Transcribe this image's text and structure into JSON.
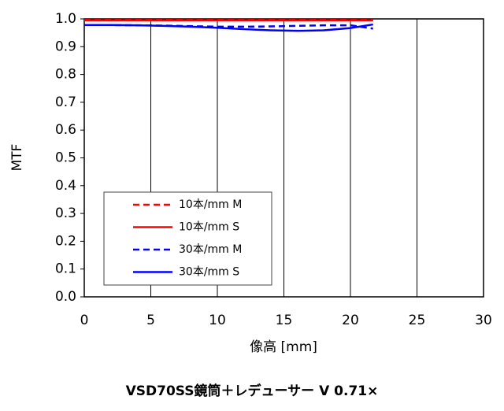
{
  "chart_data": {
    "type": "line",
    "title": "VSD70SS鏡筒＋レデューサー V 0.71×",
    "x_label": "像高 [mm]",
    "y_label": "MTF",
    "x": [
      0,
      2,
      4,
      6,
      8,
      10,
      12,
      14,
      16,
      18,
      20,
      21.7
    ],
    "series": [
      {
        "name": "10本/mm M",
        "color": "#ff0000",
        "dashed": true,
        "values": [
          0.996,
          0.996,
          0.996,
          0.996,
          0.996,
          0.996,
          0.996,
          0.996,
          0.996,
          0.996,
          0.996,
          0.996
        ]
      },
      {
        "name": "10本/mm S",
        "color": "#ff0000",
        "dashed": false,
        "values": [
          0.995,
          0.995,
          0.995,
          0.995,
          0.995,
          0.995,
          0.995,
          0.995,
          0.995,
          0.995,
          0.995,
          0.995
        ]
      },
      {
        "name": "30本/mm M",
        "color": "#0000ff",
        "dashed": true,
        "values": [
          0.978,
          0.978,
          0.977,
          0.976,
          0.974,
          0.972,
          0.972,
          0.973,
          0.975,
          0.977,
          0.977,
          0.965
        ]
      },
      {
        "name": "30本/mm S",
        "color": "#0000ff",
        "dashed": false,
        "values": [
          0.978,
          0.978,
          0.977,
          0.975,
          0.972,
          0.968,
          0.963,
          0.959,
          0.957,
          0.959,
          0.967,
          0.98
        ]
      }
    ],
    "xlim": [
      0,
      30
    ],
    "xticks": [
      0,
      5,
      10,
      15,
      20,
      25,
      30
    ],
    "ylim": [
      0,
      1
    ],
    "yticks": [
      {
        "value": 0,
        "label": "0.0"
      },
      0.1,
      0.2,
      0.3,
      0.4,
      0.5,
      0.6,
      0.7,
      0.8,
      0.9,
      {
        "value": 1,
        "label": "1.0"
      }
    ],
    "x_grid": true,
    "legend": "lower left"
  }
}
